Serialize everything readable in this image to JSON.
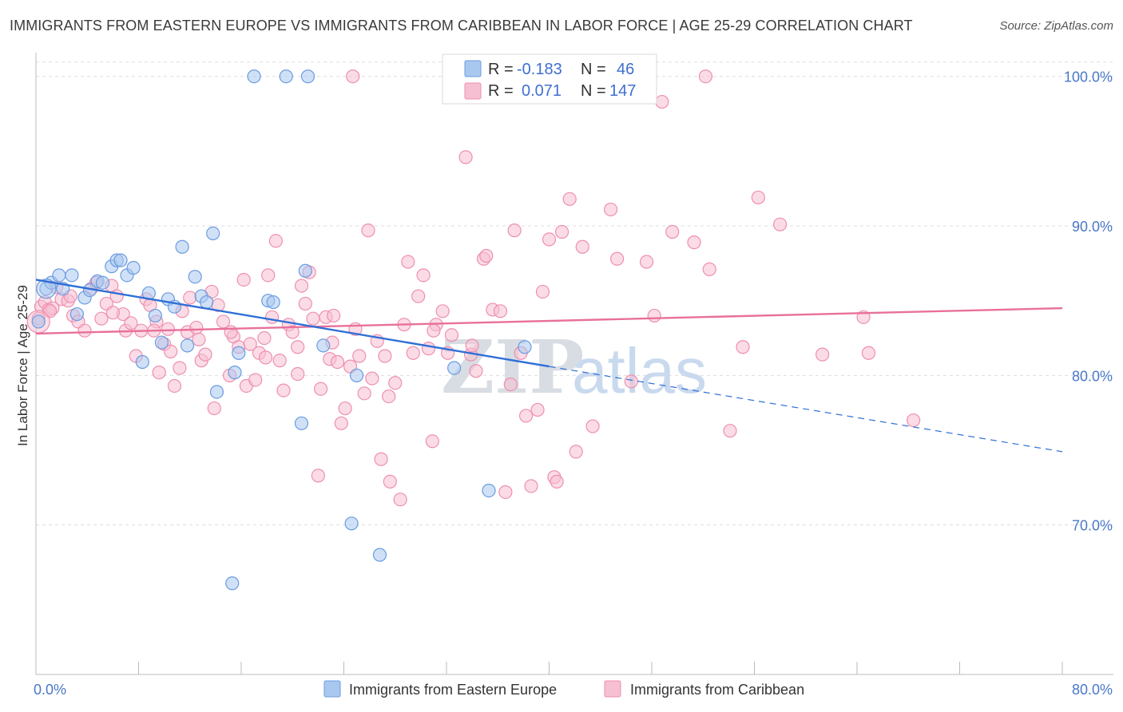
{
  "title": "IMMIGRANTS FROM EASTERN EUROPE VS IMMIGRANTS FROM CARIBBEAN IN LABOR FORCE | AGE 25-29 CORRELATION CHART",
  "source": "Source: ZipAtlas.com",
  "watermark": {
    "zip": "ZIP",
    "atlas": "atlas"
  },
  "legend": {
    "r_label": "R =",
    "n_label": "N =",
    "series": [
      {
        "r": "-0.183",
        "n": "46"
      },
      {
        "r": "0.071",
        "n": "147"
      }
    ]
  },
  "colors": {
    "blue_fill": "#a9c8f0",
    "blue_stroke": "#6b9be0",
    "blue_line": "#2f6fd6",
    "pink_fill": "#f7bfd2",
    "pink_stroke": "#ee8fb0",
    "pink_line": "#e8709a",
    "grid": "#dddddd",
    "axis_text": "#4a78c8"
  },
  "chart_data": {
    "type": "scatter",
    "title": "IMMIGRANTS FROM EASTERN EUROPE VS IMMIGRANTS FROM CARIBBEAN IN LABOR FORCE | AGE 25-29 CORRELATION CHART",
    "xlabel": "",
    "ylabel": "In Labor Force | Age 25-29",
    "xlim": [
      0,
      80
    ],
    "ylim": [
      60,
      101.8
    ],
    "x_tick_labels": [
      "0.0%",
      "80.0%"
    ],
    "y_ticks": [
      70,
      80,
      90,
      100
    ],
    "y_tick_labels": [
      "70.0%",
      "80.0%",
      "90.0%",
      "100.0%"
    ],
    "grid": true,
    "series": [
      {
        "name": "Immigrants from Eastern Europe",
        "color": "blue",
        "trend": {
          "x": [
            0,
            40
          ],
          "y": [
            86.4,
            80.6
          ],
          "dashed_to": [
            80,
            74.9
          ]
        },
        "points": [
          [
            0.2,
            83.6
          ],
          [
            0.8,
            85.8
          ],
          [
            1.2,
            86.2
          ],
          [
            1.8,
            86.7
          ],
          [
            2.1,
            85.8
          ],
          [
            2.8,
            86.7
          ],
          [
            3.2,
            84.1
          ],
          [
            3.8,
            85.2
          ],
          [
            4.2,
            85.7
          ],
          [
            4.8,
            86.3
          ],
          [
            5.2,
            86.2
          ],
          [
            5.9,
            87.3
          ],
          [
            6.3,
            87.7
          ],
          [
            6.6,
            87.7
          ],
          [
            7.1,
            86.7
          ],
          [
            7.6,
            87.2
          ],
          [
            8.3,
            80.9
          ],
          [
            8.8,
            85.5
          ],
          [
            9.3,
            84.0
          ],
          [
            9.8,
            82.2
          ],
          [
            10.3,
            85.1
          ],
          [
            10.8,
            84.6
          ],
          [
            11.4,
            88.6
          ],
          [
            11.8,
            82.0
          ],
          [
            12.4,
            86.6
          ],
          [
            12.9,
            85.3
          ],
          [
            13.3,
            84.9
          ],
          [
            13.8,
            89.5
          ],
          [
            14.1,
            78.9
          ],
          [
            15.3,
            66.1
          ],
          [
            15.8,
            81.5
          ],
          [
            15.5,
            80.2
          ],
          [
            17.0,
            100.0
          ],
          [
            18.1,
            85.0
          ],
          [
            18.5,
            84.9
          ],
          [
            19.5,
            100.0
          ],
          [
            20.7,
            76.8
          ],
          [
            21.0,
            87.0
          ],
          [
            21.2,
            100.0
          ],
          [
            22.4,
            82.0
          ],
          [
            24.6,
            70.1
          ],
          [
            25.0,
            80.0
          ],
          [
            26.8,
            68.0
          ],
          [
            32.6,
            80.5
          ],
          [
            35.3,
            72.3
          ],
          [
            38.1,
            81.9
          ]
        ]
      },
      {
        "name": "Immigrants from Caribbean",
        "color": "pink",
        "trend": {
          "x": [
            0,
            80
          ],
          "y": [
            82.8,
            84.5
          ]
        },
        "points": [
          [
            0.2,
            83.8
          ],
          [
            0.4,
            84.6
          ],
          [
            0.7,
            84.9
          ],
          [
            1.0,
            84.4
          ],
          [
            1.3,
            84.5
          ],
          [
            1.6,
            85.9
          ],
          [
            2.0,
            85.1
          ],
          [
            2.5,
            85.0
          ],
          [
            2.9,
            84.0
          ],
          [
            3.3,
            83.6
          ],
          [
            3.8,
            83.0
          ],
          [
            4.3,
            85.8
          ],
          [
            4.7,
            86.2
          ],
          [
            5.1,
            83.8
          ],
          [
            5.5,
            84.8
          ],
          [
            5.9,
            86.0
          ],
          [
            6.3,
            85.3
          ],
          [
            6.8,
            84.1
          ],
          [
            7.0,
            83.0
          ],
          [
            7.4,
            83.5
          ],
          [
            7.8,
            81.3
          ],
          [
            8.2,
            83.0
          ],
          [
            8.6,
            85.1
          ],
          [
            8.9,
            84.7
          ],
          [
            9.4,
            83.6
          ],
          [
            9.6,
            80.2
          ],
          [
            10.0,
            82.1
          ],
          [
            10.3,
            83.1
          ],
          [
            10.5,
            81.6
          ],
          [
            10.8,
            79.3
          ],
          [
            11.2,
            80.5
          ],
          [
            11.4,
            84.3
          ],
          [
            11.8,
            82.9
          ],
          [
            12.0,
            85.2
          ],
          [
            12.5,
            83.2
          ],
          [
            12.9,
            81.0
          ],
          [
            13.2,
            81.4
          ],
          [
            13.7,
            85.6
          ],
          [
            13.9,
            77.8
          ],
          [
            14.2,
            84.7
          ],
          [
            14.6,
            83.6
          ],
          [
            15.1,
            80.0
          ],
          [
            15.4,
            82.6
          ],
          [
            15.8,
            81.9
          ],
          [
            16.2,
            86.4
          ],
          [
            16.4,
            79.3
          ],
          [
            16.7,
            82.1
          ],
          [
            17.1,
            79.7
          ],
          [
            17.4,
            81.5
          ],
          [
            17.8,
            82.5
          ],
          [
            18.1,
            86.7
          ],
          [
            18.4,
            83.9
          ],
          [
            18.7,
            89.0
          ],
          [
            19.0,
            81.0
          ],
          [
            19.3,
            79.0
          ],
          [
            19.7,
            83.4
          ],
          [
            20.0,
            82.9
          ],
          [
            20.4,
            81.9
          ],
          [
            20.7,
            86.0
          ],
          [
            21.0,
            84.8
          ],
          [
            21.3,
            86.9
          ],
          [
            21.6,
            83.8
          ],
          [
            22.0,
            73.3
          ],
          [
            22.2,
            79.1
          ],
          [
            22.6,
            83.9
          ],
          [
            22.9,
            81.1
          ],
          [
            23.2,
            84.0
          ],
          [
            23.5,
            80.9
          ],
          [
            23.8,
            76.8
          ],
          [
            24.1,
            77.8
          ],
          [
            24.5,
            80.6
          ],
          [
            24.9,
            83.1
          ],
          [
            25.2,
            81.3
          ],
          [
            25.6,
            78.8
          ],
          [
            25.9,
            89.7
          ],
          [
            26.2,
            79.8
          ],
          [
            26.6,
            82.3
          ],
          [
            26.9,
            74.4
          ],
          [
            27.2,
            81.3
          ],
          [
            27.6,
            72.9
          ],
          [
            28.0,
            79.5
          ],
          [
            28.4,
            71.7
          ],
          [
            28.7,
            83.4
          ],
          [
            29.0,
            87.6
          ],
          [
            29.4,
            81.5
          ],
          [
            29.8,
            85.3
          ],
          [
            30.2,
            86.7
          ],
          [
            30.6,
            81.8
          ],
          [
            30.9,
            75.6
          ],
          [
            31.2,
            83.4
          ],
          [
            31.7,
            84.3
          ],
          [
            32.1,
            81.5
          ],
          [
            32.4,
            82.7
          ],
          [
            33.5,
            94.6
          ],
          [
            33.9,
            81.4
          ],
          [
            34.3,
            80.3
          ],
          [
            34.9,
            87.8
          ],
          [
            35.1,
            88.0
          ],
          [
            35.6,
            84.4
          ],
          [
            36.2,
            84.3
          ],
          [
            36.6,
            72.2
          ],
          [
            37.0,
            79.4
          ],
          [
            37.3,
            89.7
          ],
          [
            38.2,
            77.3
          ],
          [
            38.6,
            72.6
          ],
          [
            39.1,
            77.7
          ],
          [
            39.5,
            85.6
          ],
          [
            40.0,
            89.1
          ],
          [
            40.4,
            73.2
          ],
          [
            40.6,
            72.9
          ],
          [
            41.0,
            89.6
          ],
          [
            41.6,
            91.8
          ],
          [
            42.1,
            74.9
          ],
          [
            42.6,
            88.6
          ],
          [
            43.4,
            76.6
          ],
          [
            44.8,
            91.1
          ],
          [
            45.3,
            87.8
          ],
          [
            46.4,
            79.6
          ],
          [
            47.6,
            87.6
          ],
          [
            48.2,
            84.0
          ],
          [
            49.6,
            89.6
          ],
          [
            51.3,
            88.9
          ],
          [
            52.5,
            87.1
          ],
          [
            54.1,
            76.3
          ],
          [
            55.1,
            81.9
          ],
          [
            56.3,
            91.9
          ],
          [
            58.0,
            90.1
          ],
          [
            61.3,
            81.4
          ],
          [
            64.5,
            83.9
          ],
          [
            64.9,
            81.5
          ],
          [
            68.4,
            77.0
          ],
          [
            24.7,
            100.0
          ],
          [
            52.2,
            100.0
          ],
          [
            48.8,
            98.3
          ],
          [
            1.1,
            84.3
          ],
          [
            2.7,
            85.3
          ],
          [
            6.0,
            84.2
          ],
          [
            9.2,
            83.0
          ],
          [
            12.7,
            82.4
          ],
          [
            15.2,
            82.9
          ],
          [
            17.9,
            81.2
          ],
          [
            20.4,
            80.1
          ],
          [
            23.1,
            82.2
          ],
          [
            27.5,
            78.6
          ],
          [
            31.0,
            83.0
          ],
          [
            34.0,
            82.0
          ],
          [
            37.8,
            81.5
          ]
        ]
      }
    ]
  },
  "bottom_legend": [
    {
      "label": "Immigrants from Eastern Europe"
    },
    {
      "label": "Immigrants from Caribbean"
    }
  ]
}
